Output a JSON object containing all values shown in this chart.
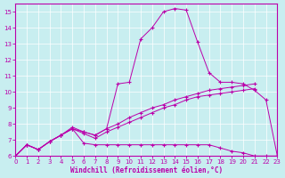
{
  "xlabel": "Windchill (Refroidissement éolien,°C)",
  "bg_color": "#c8eef0",
  "line_color": "#bb00aa",
  "xlim": [
    0,
    23
  ],
  "ylim": [
    6,
    15.5
  ],
  "yticks": [
    6,
    7,
    8,
    9,
    10,
    11,
    12,
    13,
    14,
    15
  ],
  "xticks": [
    0,
    1,
    2,
    3,
    4,
    5,
    6,
    7,
    8,
    9,
    10,
    11,
    12,
    13,
    14,
    15,
    16,
    17,
    18,
    19,
    20,
    21,
    22,
    23
  ],
  "series": [
    {
      "x": [
        0,
        1,
        2,
        3,
        4,
        5,
        6,
        7,
        8,
        9,
        10,
        11,
        12,
        13,
        14,
        15,
        16,
        17,
        18,
        19,
        20,
        21,
        22,
        23
      ],
      "y": [
        6.0,
        6.7,
        6.4,
        6.9,
        7.3,
        7.8,
        7.5,
        7.3,
        7.7,
        10.5,
        10.6,
        13.3,
        14.0,
        15.0,
        15.2,
        15.1,
        13.1,
        11.2,
        10.6,
        10.6,
        10.5,
        10.1,
        9.5,
        6.0
      ]
    },
    {
      "x": [
        0,
        1,
        2,
        3,
        4,
        5,
        6,
        7,
        8,
        9,
        10,
        11,
        12,
        13,
        14,
        15,
        16,
        17,
        18,
        19,
        20,
        21,
        22,
        23
      ],
      "y": [
        6.0,
        6.7,
        6.4,
        6.9,
        7.3,
        7.7,
        6.8,
        6.7,
        6.7,
        6.7,
        6.7,
        6.7,
        6.7,
        6.7,
        6.7,
        6.7,
        6.7,
        6.7,
        6.5,
        6.3,
        6.2,
        6.0,
        6.0,
        6.0
      ]
    },
    {
      "x": [
        0,
        1,
        2,
        3,
        4,
        5,
        6,
        7,
        8,
        9,
        10,
        11,
        12,
        13,
        14,
        15,
        16,
        17,
        18,
        19,
        20,
        21
      ],
      "y": [
        6.0,
        6.7,
        6.4,
        6.9,
        7.3,
        7.7,
        7.5,
        7.3,
        7.7,
        8.0,
        8.4,
        8.7,
        9.0,
        9.2,
        9.5,
        9.7,
        9.9,
        10.1,
        10.2,
        10.3,
        10.4,
        10.5
      ]
    },
    {
      "x": [
        0,
        1,
        2,
        3,
        4,
        5,
        6,
        7,
        8,
        9,
        10,
        11,
        12,
        13,
        14,
        15,
        16,
        17,
        18,
        19,
        20,
        21
      ],
      "y": [
        6.0,
        6.7,
        6.4,
        6.9,
        7.3,
        7.7,
        7.4,
        7.1,
        7.5,
        7.8,
        8.1,
        8.4,
        8.7,
        9.0,
        9.2,
        9.5,
        9.7,
        9.8,
        9.9,
        10.0,
        10.1,
        10.2
      ]
    }
  ]
}
